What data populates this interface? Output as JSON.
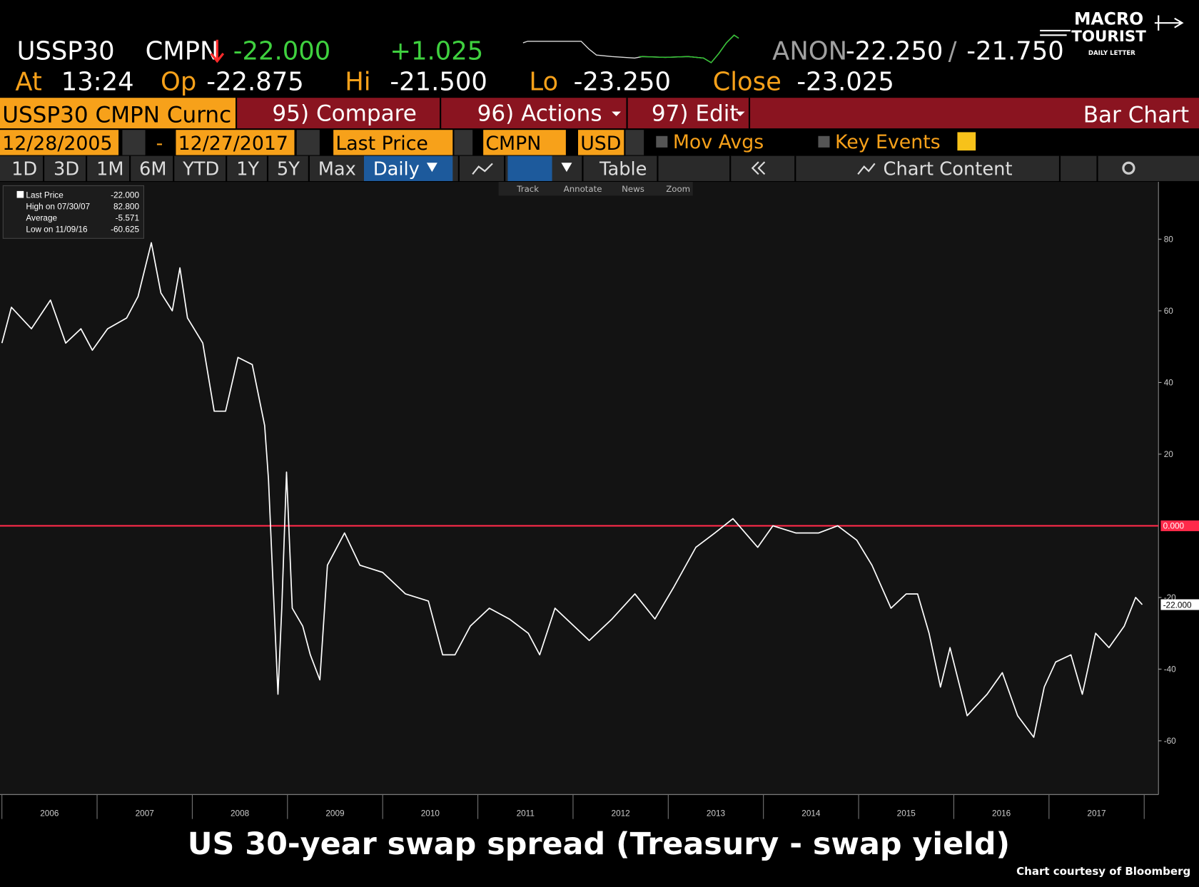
{
  "header": {
    "ticker": "USSP30",
    "source": "CMPN",
    "last": "-22.000",
    "change": "+1.025",
    "anon": "ANON",
    "bid": "-22.250",
    "slash": "/",
    "ask": "-21.750",
    "at_label": "At",
    "at": "13:24",
    "op_label": "Op",
    "op": "-22.875",
    "hi_label": "Hi",
    "hi": "-21.500",
    "lo_label": "Lo",
    "lo": "-23.250",
    "close_label": "Close",
    "close": "-23.025"
  },
  "logo": {
    "line1": "MACRO",
    "line2": "TOURIST",
    "line3": "DAILY LETTER"
  },
  "toolbar1": [
    "USSP30 CMPN Curnc",
    "95) Compare",
    "96) Actions",
    "97) Edit",
    "Bar Chart"
  ],
  "toolbar2": [
    "12/28/2005",
    "-",
    "12/27/2017",
    "Last Price",
    "CMPN",
    "USD",
    "Mov Avgs",
    "Key Events"
  ],
  "toolbar3": [
    "1D",
    "3D",
    "1M",
    "6M",
    "YTD",
    "1Y",
    "5Y",
    "Max",
    "Daily",
    "Table",
    "Chart Content"
  ],
  "chart_tools": [
    "Track",
    "Annotate",
    "News",
    "Zoom"
  ],
  "legend": [
    [
      "Last Price",
      "-22.000"
    ],
    [
      "High on 07/30/07",
      "82.800"
    ],
    [
      "Average",
      "-5.571"
    ],
    [
      "Low on 11/09/16",
      "-60.625"
    ]
  ],
  "caption": {
    "title": "US 30-year swap spread (Treasury - swap yield)",
    "credit": "Chart courtesy of Bloomberg"
  },
  "chart_data": {
    "type": "line",
    "color": "#ffffff",
    "x": [
      2006.0,
      2006.1,
      2006.31,
      2006.51,
      2006.67,
      2006.83,
      2006.95,
      2007.11,
      2007.31,
      2007.43,
      2007.57,
      2007.67,
      2007.79,
      2007.87,
      2007.95,
      2008.11,
      2008.23,
      2008.35,
      2008.48,
      2008.63,
      2008.76,
      2008.8,
      2008.84,
      2008.9,
      2008.94,
      2008.99,
      2009.05,
      2009.16,
      2009.24,
      2009.34,
      2009.42,
      2009.6,
      2009.76,
      2010.0,
      2010.24,
      2010.48,
      2010.63,
      2010.76,
      2010.92,
      2011.12,
      2011.33,
      2011.53,
      2011.65,
      2011.81,
      2012.01,
      2012.17,
      2012.41,
      2012.65,
      2012.86,
      2013.06,
      2013.29,
      2013.49,
      2013.68,
      2013.94,
      2014.1,
      2014.34,
      2014.58,
      2014.78,
      2014.98,
      2015.14,
      2015.34,
      2015.5,
      2015.62,
      2015.74,
      2015.86,
      2015.96,
      2016.14,
      2016.35,
      2016.51,
      2016.67,
      2016.84,
      2016.95,
      2017.07,
      2017.23,
      2017.35,
      2017.49,
      2017.63,
      2017.79,
      2017.91,
      2017.98
    ],
    "values": [
      51,
      61,
      55,
      63,
      51,
      55,
      49,
      55,
      58,
      64,
      79,
      65,
      60,
      72,
      58,
      51,
      32,
      32,
      47,
      45,
      28,
      13,
      -11,
      -47,
      -23,
      15,
      -23,
      -28,
      -36,
      -43,
      -11,
      -2,
      -11,
      -13,
      -19,
      -21,
      -36,
      -36,
      -28,
      -23,
      -26,
      -30,
      -36,
      -23,
      -28,
      -32,
      -26,
      -19,
      -26,
      -17,
      -6,
      -2,
      2,
      -6,
      0,
      -2,
      -2,
      0,
      -4,
      -11,
      -23,
      -19,
      -19,
      -30,
      -45,
      -34,
      -53,
      -47,
      -41,
      -53,
      -59,
      -45,
      -38,
      -36,
      -47,
      -30,
      -34,
      -28,
      -20,
      -22
    ],
    "last_label": "-22.000",
    "xlim": [
      2005.98,
      2018.15
    ],
    "xticks": [
      {
        "value": 2006.5,
        "label": "2006"
      },
      {
        "value": 2007.5,
        "label": "2007"
      },
      {
        "value": 2008.5,
        "label": "2008"
      },
      {
        "value": 2009.5,
        "label": "2009"
      },
      {
        "value": 2010.5,
        "label": "2010"
      },
      {
        "value": 2011.5,
        "label": "2011"
      },
      {
        "value": 2012.5,
        "label": "2012"
      },
      {
        "value": 2013.5,
        "label": "2013"
      },
      {
        "value": 2014.5,
        "label": "2014"
      },
      {
        "value": 2015.5,
        "label": "2015"
      },
      {
        "value": 2016.5,
        "label": "2016"
      },
      {
        "value": 2017.5,
        "label": "2017"
      }
    ],
    "ylim": [
      -75,
      96
    ],
    "yticks": [
      80,
      60,
      40,
      20,
      -20,
      -40,
      -60
    ],
    "reference_line": {
      "value": 0,
      "label": "0.000",
      "color": "#ff2a4a"
    }
  }
}
